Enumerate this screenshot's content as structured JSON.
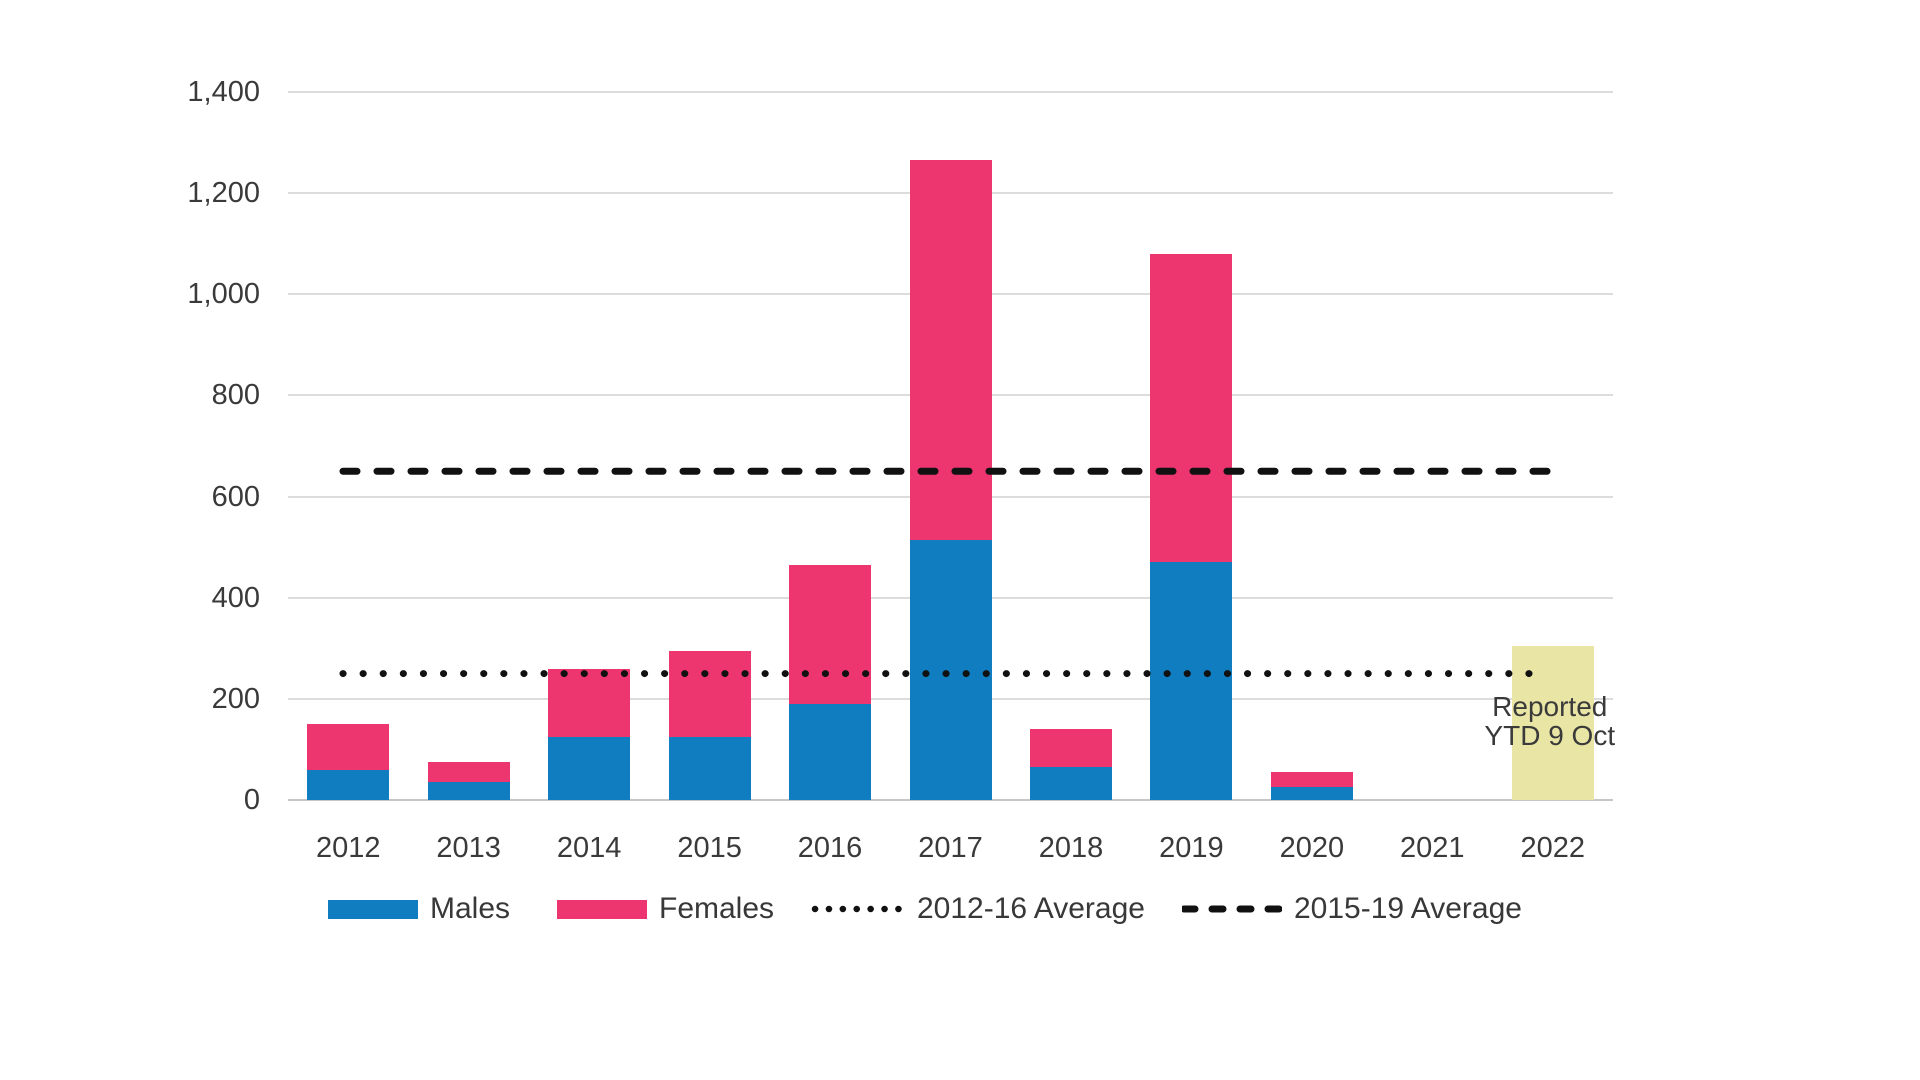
{
  "chart_data": {
    "type": "bar",
    "stacked": true,
    "title": "",
    "xlabel": "",
    "ylabel": "",
    "ylim": [
      0,
      1400
    ],
    "ytick_step": 200,
    "ytick_labels": [
      "0",
      "200",
      "400",
      "600",
      "800",
      "1,000",
      "1,200",
      "1,400"
    ],
    "grid": true,
    "legend_position": "bottom",
    "categories": [
      "2012",
      "2013",
      "2014",
      "2015",
      "2016",
      "2017",
      "2018",
      "2019",
      "2020",
      "2021",
      "2022"
    ],
    "series": [
      {
        "name": "Males",
        "color": "#0F7DBF",
        "values": [
          60,
          35,
          125,
          125,
          190,
          515,
          65,
          470,
          25,
          0,
          0
        ]
      },
      {
        "name": "Females",
        "color": "#ED3570",
        "values": [
          90,
          40,
          135,
          170,
          275,
          750,
          75,
          610,
          30,
          0,
          0
        ]
      }
    ],
    "reported_bar": {
      "category": "2022",
      "value": 305,
      "color": "#E9E5A5",
      "label_lines": [
        "Reported",
        "YTD 9 Oct"
      ]
    },
    "reference_lines": [
      {
        "name": "2012-16 Average",
        "value": 250,
        "style": "dotted",
        "color": "#111111"
      },
      {
        "name": "2015-19 Average",
        "value": 650,
        "style": "dashed",
        "color": "#111111"
      }
    ]
  }
}
